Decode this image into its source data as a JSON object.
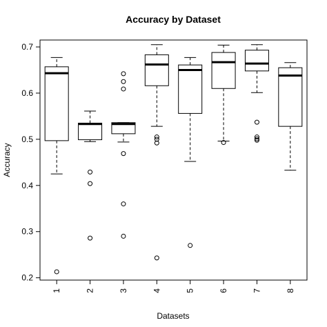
{
  "chart_data": {
    "type": "boxplot",
    "title": "Accuracy by Dataset",
    "xlabel": "Datasets",
    "ylabel": "Accuracy",
    "ylim": [
      0.195,
      0.715
    ],
    "yticks": [
      0.2,
      0.3,
      0.4,
      0.5,
      0.6,
      0.7
    ],
    "ytick_labels": [
      "0.2",
      "0.3",
      "0.4",
      "0.5",
      "0.6",
      "0.7"
    ],
    "grid": false,
    "legend": "none",
    "categories": [
      "1",
      "2",
      "3",
      "4",
      "5",
      "6",
      "7",
      "8"
    ],
    "boxes": [
      {
        "category": "1",
        "whisker_low": 0.425,
        "q1": 0.497,
        "median": 0.643,
        "q3": 0.657,
        "whisker_high": 0.677,
        "outliers": [
          0.213
        ]
      },
      {
        "category": "2",
        "whisker_low": 0.495,
        "q1": 0.499,
        "median": 0.533,
        "q3": 0.535,
        "whisker_high": 0.561,
        "outliers": [
          0.429,
          0.404,
          0.286
        ]
      },
      {
        "category": "3",
        "whisker_low": 0.494,
        "q1": 0.512,
        "median": 0.533,
        "q3": 0.536,
        "whisker_high": 0.536,
        "outliers": [
          0.642,
          0.625,
          0.609,
          0.469,
          0.36,
          0.29
        ]
      },
      {
        "category": "4",
        "whisker_low": 0.528,
        "q1": 0.616,
        "median": 0.662,
        "q3": 0.683,
        "whisker_high": 0.705,
        "outliers": [
          0.505,
          0.5,
          0.492,
          0.243
        ]
      },
      {
        "category": "5",
        "whisker_low": 0.452,
        "q1": 0.556,
        "median": 0.65,
        "q3": 0.661,
        "whisker_high": 0.677,
        "outliers": [
          0.27
        ]
      },
      {
        "category": "6",
        "whisker_low": 0.496,
        "q1": 0.61,
        "median": 0.667,
        "q3": 0.688,
        "whisker_high": 0.704,
        "outliers": [
          0.493
        ]
      },
      {
        "category": "7",
        "whisker_low": 0.601,
        "q1": 0.648,
        "median": 0.664,
        "q3": 0.693,
        "whisker_high": 0.705,
        "outliers": [
          0.537,
          0.505,
          0.501,
          0.498
        ]
      },
      {
        "category": "8",
        "whisker_low": 0.433,
        "q1": 0.528,
        "median": 0.638,
        "q3": 0.655,
        "whisker_high": 0.666,
        "outliers": []
      }
    ]
  }
}
